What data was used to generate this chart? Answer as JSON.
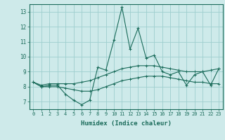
{
  "xlabel": "Humidex (Indice chaleur)",
  "ylabel": "",
  "background_color": "#ceeaea",
  "grid_color": "#9ecece",
  "line_color": "#1a6b5a",
  "hours": [
    0,
    1,
    2,
    3,
    4,
    5,
    6,
    7,
    8,
    9,
    10,
    11,
    12,
    13,
    14,
    15,
    16,
    17,
    18,
    19,
    20,
    21,
    22,
    23
  ],
  "main_line": [
    8.3,
    8.0,
    8.1,
    8.1,
    7.5,
    7.1,
    6.8,
    7.1,
    9.3,
    9.1,
    11.1,
    13.3,
    10.5,
    11.9,
    9.9,
    10.1,
    9.0,
    8.8,
    9.0,
    8.1,
    8.8,
    9.0,
    8.1,
    9.2
  ],
  "upper_line": [
    8.3,
    8.1,
    8.2,
    8.2,
    8.2,
    8.2,
    8.3,
    8.4,
    8.6,
    8.8,
    9.0,
    9.2,
    9.3,
    9.4,
    9.4,
    9.4,
    9.3,
    9.2,
    9.1,
    9.0,
    9.0,
    9.0,
    9.1,
    9.2
  ],
  "lower_line": [
    8.3,
    8.0,
    8.0,
    8.0,
    7.9,
    7.8,
    7.7,
    7.7,
    7.8,
    8.0,
    8.2,
    8.4,
    8.5,
    8.6,
    8.7,
    8.7,
    8.7,
    8.6,
    8.5,
    8.4,
    8.3,
    8.3,
    8.2,
    8.2
  ],
  "ylim": [
    6.5,
    13.5
  ],
  "yticks": [
    7,
    8,
    9,
    10,
    11,
    12,
    13
  ]
}
